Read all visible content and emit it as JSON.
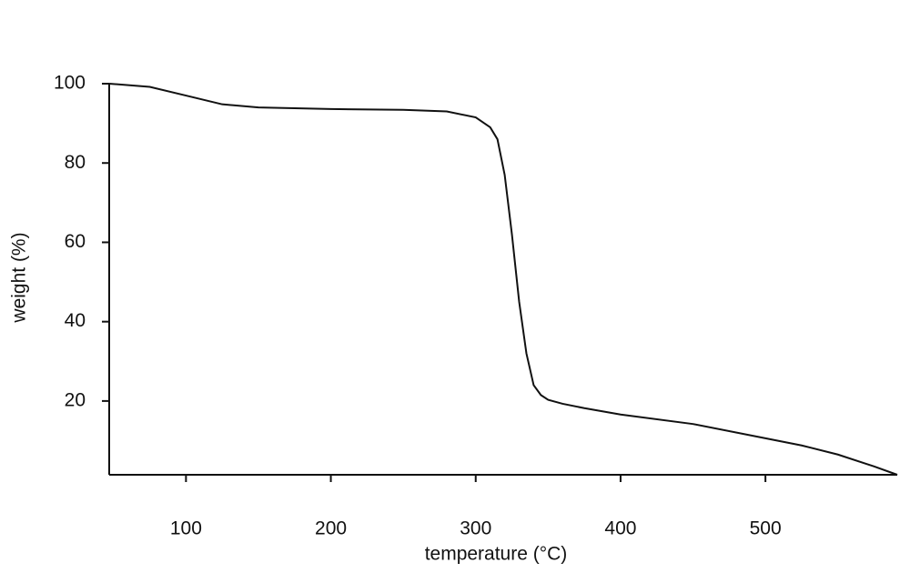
{
  "chart_data": {
    "type": "line",
    "x_label": "temperature (°C)",
    "y_label": "weight (%)",
    "x": [
      47,
      75,
      100,
      125,
      150,
      200,
      250,
      280,
      300,
      310,
      315,
      320,
      325,
      330,
      335,
      340,
      345,
      350,
      360,
      375,
      400,
      450,
      500,
      525,
      550,
      575,
      591
    ],
    "series": [
      {
        "color": "#111111",
        "values": [
          100,
          99.2,
          97,
          94.8,
          94,
          93.6,
          93.4,
          93,
          91.5,
          89,
          86,
          77,
          62,
          45,
          32,
          24,
          21.5,
          20.3,
          19.3,
          18.2,
          16.6,
          14.2,
          10.6,
          8.8,
          6.5,
          3.5,
          1.4
        ]
      }
    ],
    "xlim": [
      47,
      591
    ],
    "ylim": [
      1.4,
      100
    ],
    "xticks": [
      100,
      200,
      300,
      400,
      500
    ],
    "yticks": [
      20,
      40,
      60,
      80,
      100
    ]
  }
}
